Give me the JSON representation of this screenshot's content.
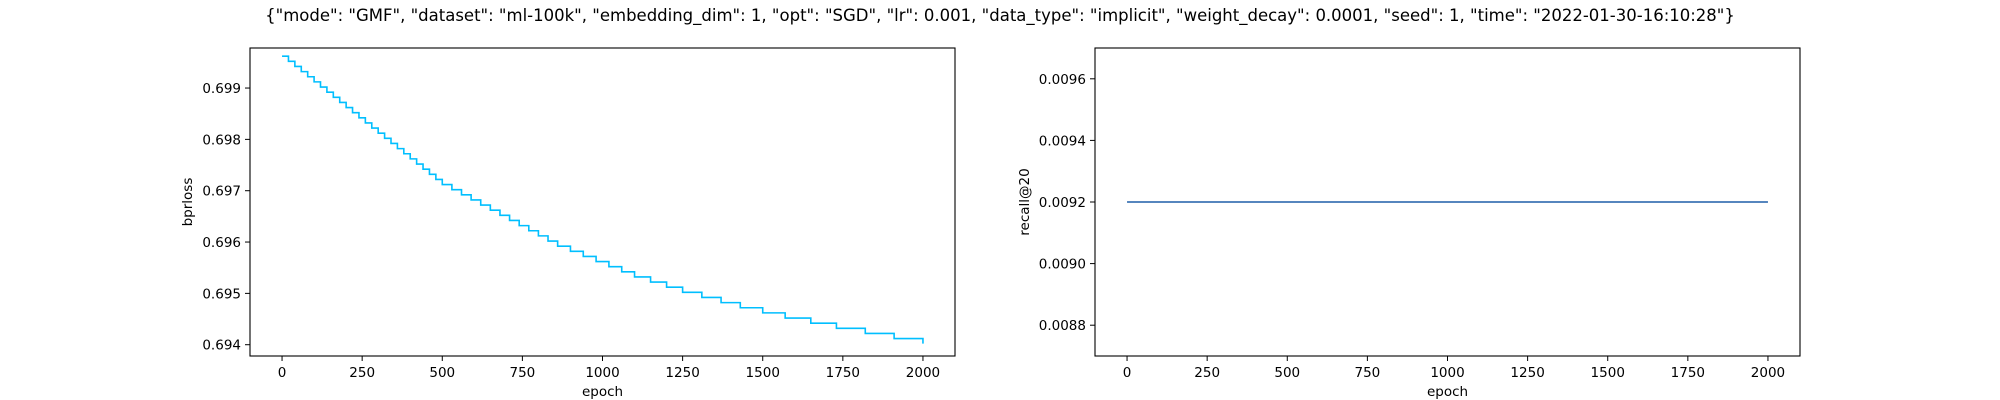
{
  "title": "{\"mode\": \"GMF\", \"dataset\": \"ml-100k\", \"embedding_dim\": 1, \"opt\": \"SGD\", \"lr\": 0.001, \"data_type\": \"implicit\", \"weight_decay\": 0.0001, \"seed\": 1, \"time\": \"2022-01-30-16:10:28\"}",
  "chart_data": [
    {
      "type": "line",
      "xlabel": "epoch",
      "ylabel": "bprloss",
      "xlim": [
        -100,
        2100
      ],
      "ylim": [
        0.69378,
        0.69978
      ],
      "x_ticks": [
        0,
        250,
        500,
        750,
        1000,
        1250,
        1500,
        1750,
        2000
      ],
      "x_tick_labels": [
        "0",
        "250",
        "500",
        "750",
        "1000",
        "1250",
        "1500",
        "1750",
        "2000"
      ],
      "y_ticks": [
        0.694,
        0.695,
        0.696,
        0.697,
        0.698,
        0.699
      ],
      "y_tick_labels": [
        "0.694",
        "0.695",
        "0.696",
        "0.697",
        "0.698",
        "0.699"
      ],
      "grid": false,
      "line_style": "step",
      "series": [
        {
          "color": "#00bfff",
          "x": [
            0,
            20,
            40,
            60,
            80,
            100,
            120,
            140,
            160,
            180,
            200,
            220,
            240,
            260,
            280,
            300,
            320,
            340,
            360,
            380,
            400,
            420,
            440,
            460,
            480,
            500,
            530,
            560,
            590,
            620,
            650,
            680,
            710,
            740,
            770,
            800,
            830,
            860,
            900,
            940,
            980,
            1020,
            1060,
            1100,
            1150,
            1200,
            1250,
            1310,
            1370,
            1430,
            1500,
            1570,
            1650,
            1730,
            1820,
            1910,
            2000
          ],
          "y": [
            0.69962,
            0.69952,
            0.69942,
            0.69932,
            0.69922,
            0.69912,
            0.69902,
            0.69892,
            0.69882,
            0.69872,
            0.69862,
            0.69852,
            0.69842,
            0.69832,
            0.69822,
            0.69812,
            0.69802,
            0.69792,
            0.69782,
            0.69772,
            0.69762,
            0.69752,
            0.69742,
            0.69732,
            0.69722,
            0.69712,
            0.69702,
            0.69692,
            0.69682,
            0.69672,
            0.69662,
            0.69652,
            0.69642,
            0.69632,
            0.69622,
            0.69612,
            0.69602,
            0.69592,
            0.69582,
            0.69572,
            0.69562,
            0.69552,
            0.69542,
            0.69532,
            0.69522,
            0.69512,
            0.69502,
            0.69492,
            0.69482,
            0.69472,
            0.69462,
            0.69452,
            0.69442,
            0.69432,
            0.69422,
            0.69412,
            0.69402
          ]
        }
      ]
    },
    {
      "type": "line",
      "xlabel": "epoch",
      "ylabel": "recall@20",
      "xlim": [
        -100,
        2100
      ],
      "ylim": [
        0.0087,
        0.0097
      ],
      "x_ticks": [
        0,
        250,
        500,
        750,
        1000,
        1250,
        1500,
        1750,
        2000
      ],
      "x_tick_labels": [
        "0",
        "250",
        "500",
        "750",
        "1000",
        "1250",
        "1500",
        "1750",
        "2000"
      ],
      "y_ticks": [
        0.0088,
        0.009,
        0.0092,
        0.0094,
        0.0096
      ],
      "y_tick_labels": [
        "0.0088",
        "0.0090",
        "0.0092",
        "0.0094",
        "0.0096"
      ],
      "grid": false,
      "line_style": "line",
      "series": [
        {
          "color": "#1f5fa8",
          "x": [
            0,
            2000
          ],
          "y": [
            0.0092,
            0.0092
          ]
        }
      ]
    }
  ]
}
